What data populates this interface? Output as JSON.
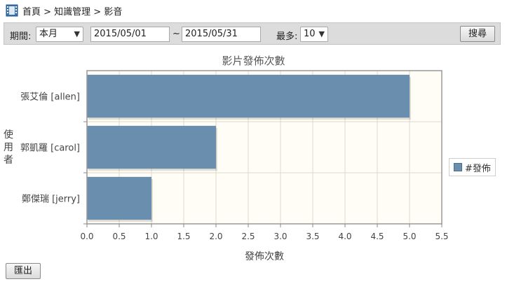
{
  "breadcrumb": {
    "icon": "film-icon",
    "text": "首頁 > 知識管理 > 影音"
  },
  "filters": {
    "period_label": "期間:",
    "period_value": "本月",
    "date_from": "2015/05/01",
    "date_sep": "~",
    "date_to": "2015/05/31",
    "max_label": "最多:",
    "max_value": "10",
    "search_button": "搜尋"
  },
  "export_button": "匯出",
  "chart_data": {
    "type": "bar",
    "orientation": "horizontal",
    "title": "影片發佈次數",
    "xlabel": "發佈次數",
    "ylabel": "使用者",
    "categories": [
      "張艾倫 [allen]",
      "郭凱羅 [carol]",
      "鄭傑瑞 [jerry]"
    ],
    "series": [
      {
        "name": "#發佈",
        "values": [
          5,
          2,
          1
        ],
        "color": "#6a8fae"
      }
    ],
    "xlim": [
      0,
      5.5
    ],
    "xticks": [
      "0.0",
      "0.5",
      "1.0",
      "1.5",
      "2.0",
      "2.5",
      "3.0",
      "3.5",
      "4.0",
      "4.5",
      "5.0",
      "5.5"
    ],
    "grid": true,
    "legend": "right",
    "plot_background": "#fffdf5"
  }
}
